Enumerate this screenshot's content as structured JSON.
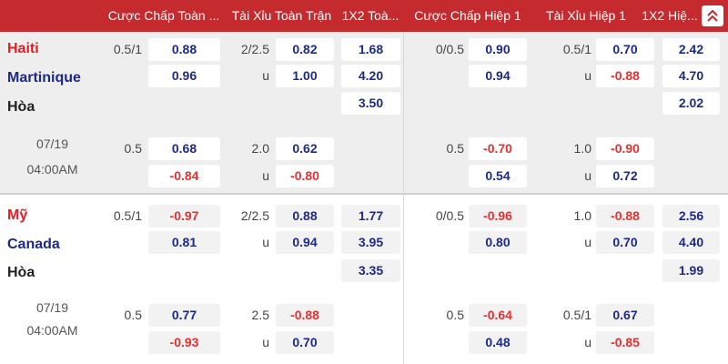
{
  "header": {
    "columns": [
      "Cược Chấp Toàn ...",
      "Tài Xỉu Toàn Trận",
      "1X2 Toà...",
      "Cược Chấp Hiệp 1",
      "Tài Xỉu Hiệp 1",
      "1X2 Hiệ..."
    ]
  },
  "matches": [
    {
      "teams": [
        "Haiti",
        "Martinique",
        "Hòa"
      ],
      "date": "07/19",
      "time": "04:00AM",
      "rows": [
        [
          "0.5/1",
          "0.88",
          "2/2.5",
          "0.82",
          "1.68",
          "0/0.5",
          "0.90",
          "0.5/1",
          "0.70",
          "2.42"
        ],
        [
          null,
          "0.96",
          "u",
          "1.00",
          "4.20",
          null,
          "0.94",
          "u",
          "-0.88",
          "4.70"
        ],
        [
          null,
          null,
          null,
          null,
          "3.50",
          null,
          null,
          null,
          null,
          "2.02"
        ],
        [
          "0.5",
          "0.68",
          "2.0",
          "0.62",
          null,
          "0.5",
          "-0.70",
          "1.0",
          "-0.90",
          null
        ],
        [
          null,
          "-0.84",
          "u",
          "-0.80",
          null,
          null,
          "0.54",
          "u",
          "0.72",
          null
        ]
      ]
    },
    {
      "teams": [
        "Mỹ",
        "Canada",
        "Hòa"
      ],
      "date": "07/19",
      "time": "04:00AM",
      "rows": [
        [
          "0.5/1",
          "-0.97",
          "2/2.5",
          "0.88",
          "1.77",
          "0/0.5",
          "-0.96",
          "1.0",
          "-0.88",
          "2.56"
        ],
        [
          null,
          "0.81",
          "u",
          "0.94",
          "3.95",
          null,
          "0.80",
          "u",
          "0.70",
          "4.40"
        ],
        [
          null,
          null,
          null,
          null,
          "3.35",
          null,
          null,
          null,
          null,
          "1.99"
        ],
        [
          "0.5",
          "0.77",
          "2.5",
          "-0.88",
          null,
          "0.5",
          "-0.64",
          "0.5/1",
          "0.67",
          null
        ],
        [
          null,
          "-0.93",
          "u",
          "0.70",
          null,
          null,
          "0.48",
          "u",
          "-0.85",
          null
        ]
      ]
    }
  ]
}
